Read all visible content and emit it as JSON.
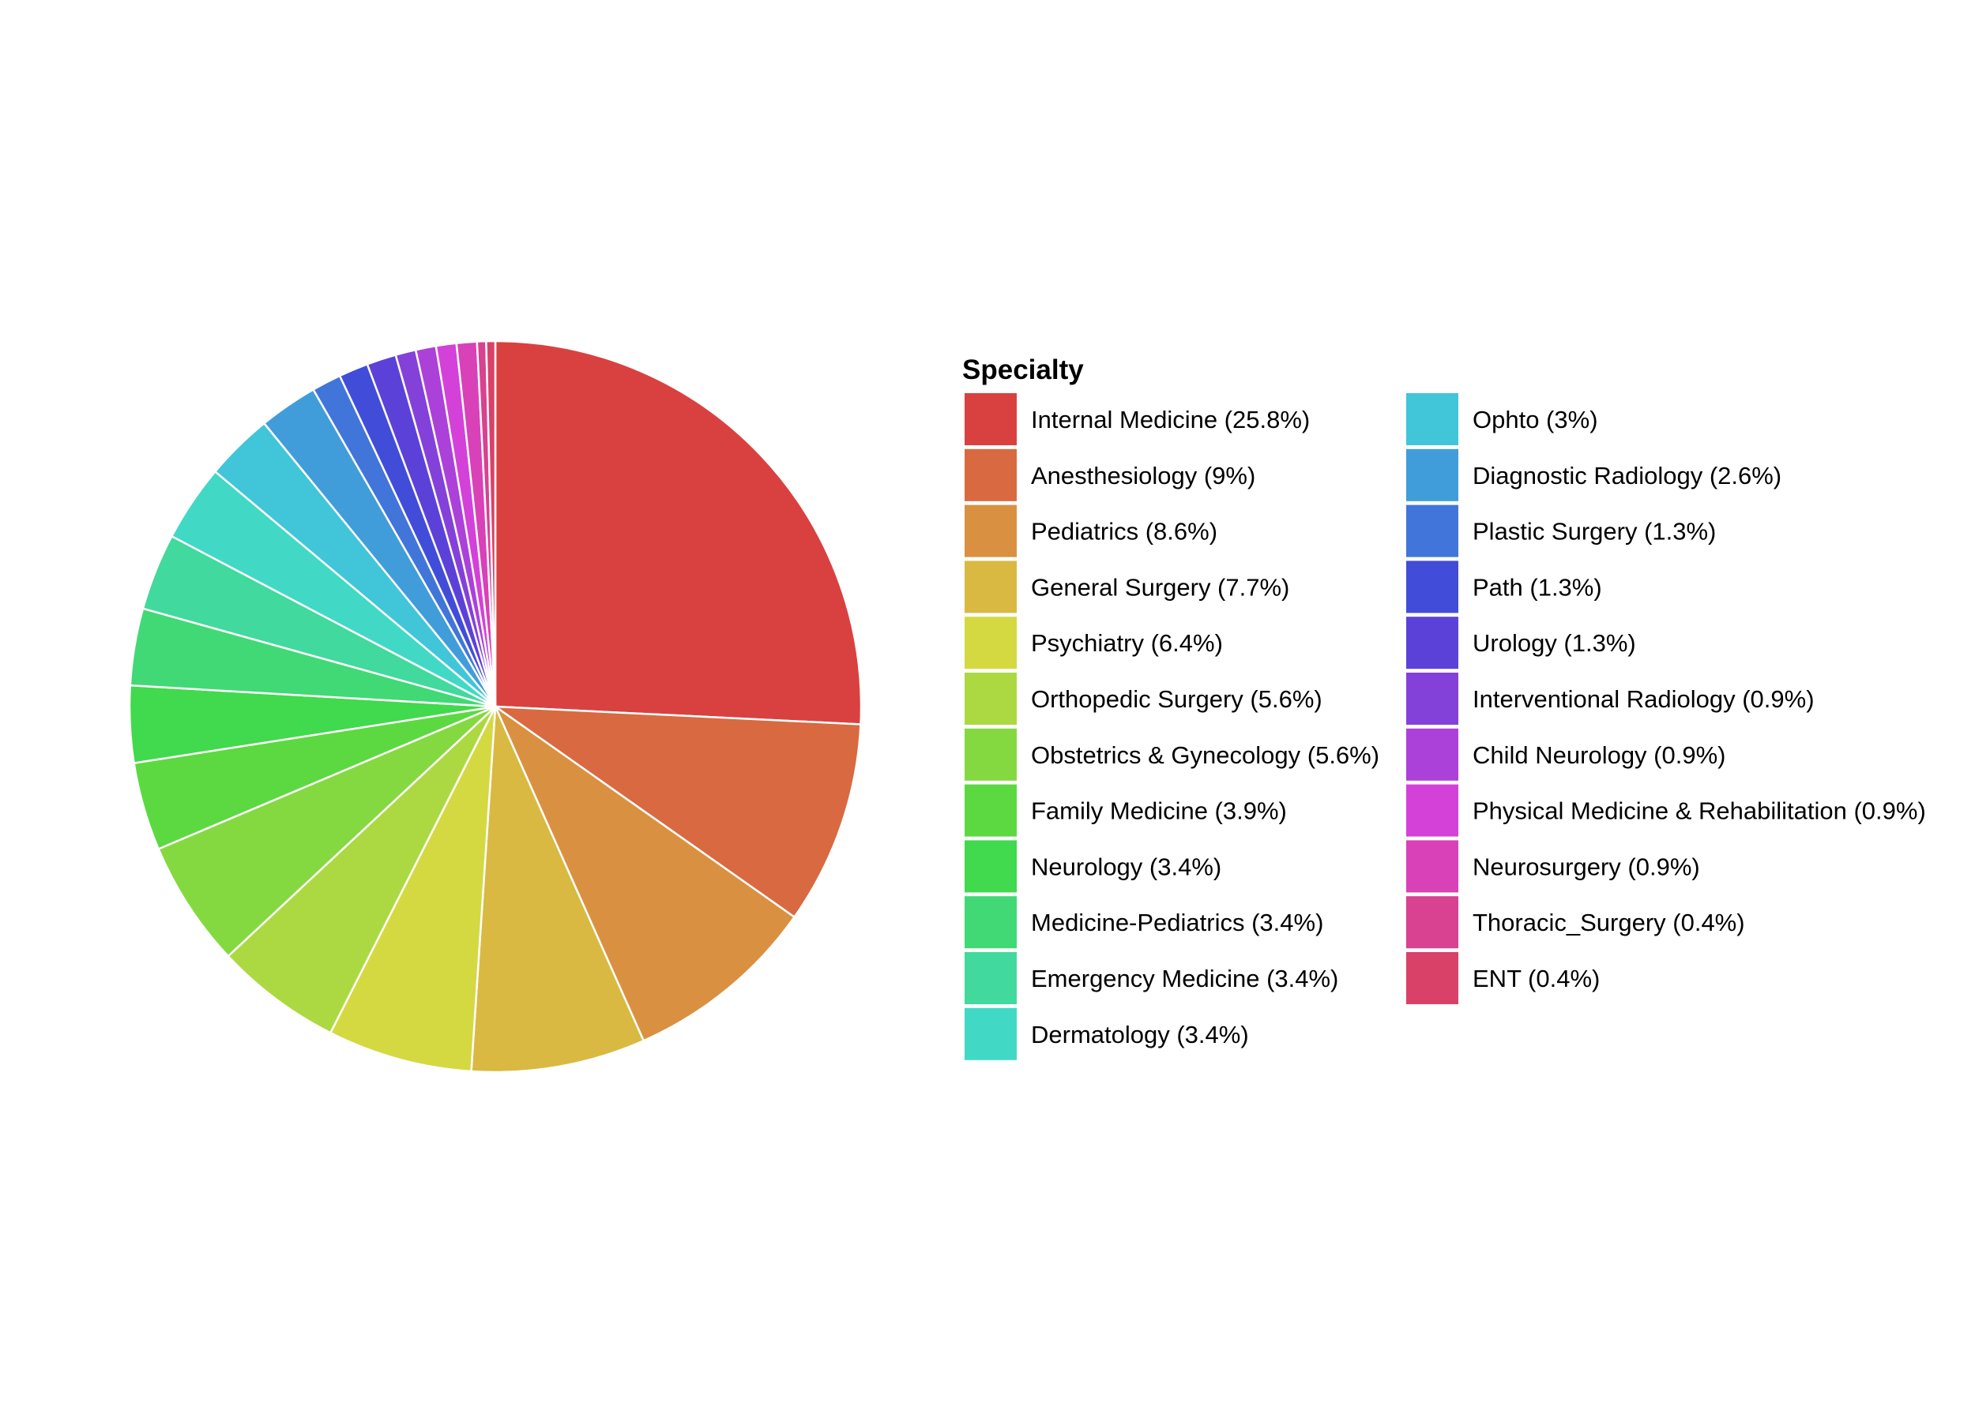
{
  "chart_data": {
    "type": "pie",
    "legend_title": "Specialty",
    "legend_placement": "right",
    "slice_border_color": "#ffffff",
    "start_direction": "top",
    "rotation": "clockwise",
    "slices": [
      {
        "label": "Internal Medicine (25.8%)",
        "value": 25.8,
        "color": "#D94141"
      },
      {
        "label": "Anesthesiology (9%)",
        "value": 9.0,
        "color": "#D96941"
      },
      {
        "label": "Pediatrics (8.6%)",
        "value": 8.6,
        "color": "#D99141"
      },
      {
        "label": "General Surgery (7.7%)",
        "value": 7.7,
        "color": "#D9B941"
      },
      {
        "label": "Psychiatry (6.4%)",
        "value": 6.4,
        "color": "#D4D941"
      },
      {
        "label": "Orthopedic Surgery (5.6%)",
        "value": 5.6,
        "color": "#ACD941"
      },
      {
        "label": "Obstetrics & Gynecology (5.6%)",
        "value": 5.6,
        "color": "#84D941"
      },
      {
        "label": "Family Medicine (3.9%)",
        "value": 3.9,
        "color": "#5CD941"
      },
      {
        "label": "Neurology (3.4%)",
        "value": 3.4,
        "color": "#41D94D"
      },
      {
        "label": "Medicine-Pediatrics (3.4%)",
        "value": 3.4,
        "color": "#41D975"
      },
      {
        "label": "Emergency Medicine (3.4%)",
        "value": 3.4,
        "color": "#41D99D"
      },
      {
        "label": "Dermatology (3.4%)",
        "value": 3.4,
        "color": "#41D9C5"
      },
      {
        "label": "Ophto (3%)",
        "value": 3.0,
        "color": "#41C5D9"
      },
      {
        "label": "Diagnostic Radiology (2.6%)",
        "value": 2.6,
        "color": "#419DD9"
      },
      {
        "label": "Plastic Surgery (1.3%)",
        "value": 1.3,
        "color": "#4175D9"
      },
      {
        "label": "Path (1.3%)",
        "value": 1.3,
        "color": "#414DD9"
      },
      {
        "label": "Urology (1.3%)",
        "value": 1.3,
        "color": "#5C41D9"
      },
      {
        "label": "Interventional Radiology (0.9%)",
        "value": 0.9,
        "color": "#8441D9"
      },
      {
        "label": "Child Neurology (0.9%)",
        "value": 0.9,
        "color": "#AC41D9"
      },
      {
        "label": "Physical Medicine & Rehabilitation (0.9%)",
        "value": 0.9,
        "color": "#D441D9"
      },
      {
        "label": "Neurosurgery (0.9%)",
        "value": 0.9,
        "color": "#D941B9"
      },
      {
        "label": "Thoracic_Surgery (0.4%)",
        "value": 0.4,
        "color": "#D94191"
      },
      {
        "label": "ENT (0.4%)",
        "value": 0.4,
        "color": "#D94169"
      }
    ]
  }
}
